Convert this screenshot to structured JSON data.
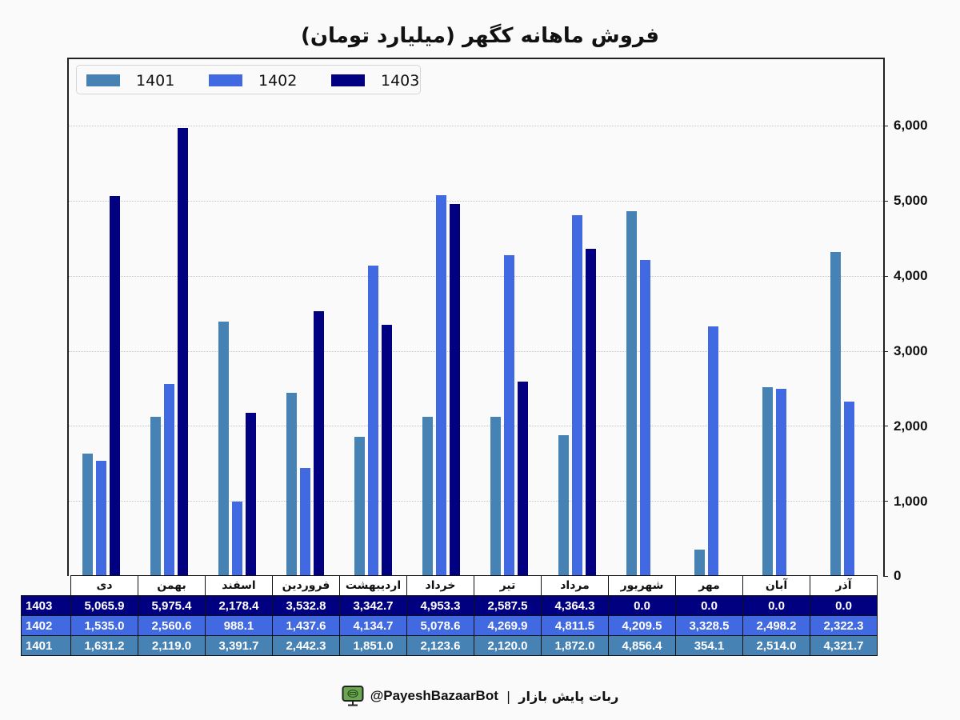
{
  "title": "فروش ماهانه کگهر (میلیارد تومان)",
  "legend": [
    {
      "label": "1401",
      "color": "#4682b4"
    },
    {
      "label": "1402",
      "color": "#4169e1"
    },
    {
      "label": "1403",
      "color": "#000080"
    }
  ],
  "y_axis": {
    "ticks": [
      "0",
      "1,000",
      "2,000",
      "3,000",
      "4,000",
      "5,000",
      "6,000"
    ],
    "position": "right"
  },
  "table": {
    "months": [
      "دی",
      "بهمن",
      "اسفند",
      "فروردین",
      "اردیبهشت",
      "خرداد",
      "تیر",
      "مرداد",
      "شهریور",
      "مهر",
      "آبان",
      "آذر"
    ],
    "rows": [
      {
        "label": "1403",
        "color": "#000080",
        "values": [
          "5,065.9",
          "5,975.4",
          "2,178.4",
          "3,532.8",
          "3,342.7",
          "4,953.3",
          "2,587.5",
          "4,364.3",
          "0.0",
          "0.0",
          "0.0",
          "0.0"
        ]
      },
      {
        "label": "1402",
        "color": "#4169e1",
        "values": [
          "1,535.0",
          "2,560.6",
          "988.1",
          "1,437.6",
          "4,134.7",
          "5,078.6",
          "4,269.9",
          "4,811.5",
          "4,209.5",
          "3,328.5",
          "2,498.2",
          "2,322.3"
        ]
      },
      {
        "label": "1401",
        "color": "#4682b4",
        "values": [
          "1,631.2",
          "2,119.0",
          "3,391.7",
          "2,442.3",
          "1,851.0",
          "2,123.6",
          "2,120.0",
          "1,872.0",
          "4,856.4",
          "354.1",
          "2,514.0",
          "4,321.7"
        ]
      }
    ]
  },
  "footer": {
    "handle": "@PayeshBazaarBot",
    "separator": "|",
    "name": "ربات پایش بازار",
    "icon": "monitor-bot-icon"
  },
  "chart_data": {
    "type": "bar",
    "title": "فروش ماهانه کگهر (میلیارد تومان)",
    "xlabel": "",
    "ylabel": "",
    "ylim": [
      0,
      6900
    ],
    "grid": true,
    "legend_position": "upper left",
    "categories": [
      "دی",
      "بهمن",
      "اسفند",
      "فروردین",
      "اردیبهشت",
      "خرداد",
      "تیر",
      "مرداد",
      "شهریور",
      "مهر",
      "آبان",
      "آذر"
    ],
    "series": [
      {
        "name": "1401",
        "color": "#4682b4",
        "values": [
          1631.2,
          2119.0,
          3391.7,
          2442.3,
          1851.0,
          2123.6,
          2120.0,
          1872.0,
          4856.4,
          354.1,
          2514.0,
          4321.7
        ]
      },
      {
        "name": "1402",
        "color": "#4169e1",
        "values": [
          1535.0,
          2560.6,
          988.1,
          1437.6,
          4134.7,
          5078.6,
          4269.9,
          4811.5,
          4209.5,
          3328.5,
          2498.2,
          2322.3
        ]
      },
      {
        "name": "1403",
        "color": "#000080",
        "values": [
          5065.9,
          5975.4,
          2178.4,
          3532.8,
          3342.7,
          4953.3,
          2587.5,
          4364.3,
          0.0,
          0.0,
          0.0,
          0.0
        ]
      }
    ]
  }
}
